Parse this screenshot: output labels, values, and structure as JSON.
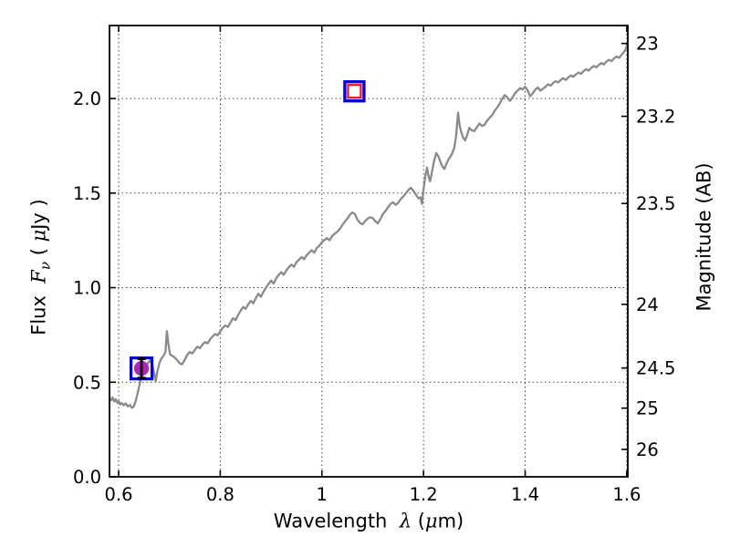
{
  "figure": {
    "background": "#ffffff",
    "title": ""
  },
  "chart_data": {
    "type": "line",
    "title": "",
    "xlabel": "Wavelength  λ (μm)",
    "xlabel_parts": [
      {
        "t": "Wavelength  ",
        "math": false
      },
      {
        "t": "λ",
        "math": true
      },
      {
        "t": " (",
        "math": false
      },
      {
        "t": "μ",
        "math": true
      },
      {
        "t": "m)",
        "math": false
      }
    ],
    "ylabel_left": "Flux Fν ( μJy )",
    "ylabel_left_parts": [
      {
        "t": "Flux  ",
        "math": false
      },
      {
        "t": "F",
        "math": true
      },
      {
        "t": "ν",
        "math": true,
        "sub": true
      },
      {
        "t": " ( ",
        "math": false
      },
      {
        "t": "μ",
        "math": true
      },
      {
        "t": "Jy )",
        "math": false
      }
    ],
    "ylabel_right": "Magnitude (AB)",
    "ylabel_right_parts": [
      {
        "t": "Magnitude (AB)",
        "math": false
      }
    ],
    "xlim": [
      0.582,
      1.602
    ],
    "ylim": [
      0,
      2.386
    ],
    "grid": "dotted",
    "legend": "none",
    "x_ticks": [
      {
        "v": 0.6,
        "label": "0.6"
      },
      {
        "v": 0.8,
        "label": "0.8"
      },
      {
        "v": 1.0,
        "label": "1"
      },
      {
        "v": 1.2,
        "label": "1.2"
      },
      {
        "v": 1.4,
        "label": "1.4"
      },
      {
        "v": 1.6,
        "label": "1.6"
      }
    ],
    "y_ticks_left": [
      {
        "v": 0.0,
        "label": "0.0"
      },
      {
        "v": 0.5,
        "label": "0.5"
      },
      {
        "v": 1.0,
        "label": "1.0"
      },
      {
        "v": 1.5,
        "label": "1.5"
      },
      {
        "v": 2.0,
        "label": "2.0"
      }
    ],
    "y_ticks_right_magnitude": [
      {
        "label": "23",
        "flux": 2.291
      },
      {
        "label": "23.2",
        "flux": 1.906
      },
      {
        "label": "23.5",
        "flux": 1.445
      },
      {
        "label": "24",
        "flux": 0.912
      },
      {
        "label": "24.5",
        "flux": 0.575
      },
      {
        "label": "25",
        "flux": 0.363
      },
      {
        "label": "26",
        "flux": 0.145
      }
    ],
    "colors": {
      "spectrum": "#8a8a8a",
      "blue_square": "#0000ee",
      "red_square": "#ee1111",
      "magenta_circle": "#b224b8",
      "errorbar": "#000000",
      "grid": "#444444",
      "axis": "#000000"
    },
    "photometry_markers": [
      {
        "name": "observed photometry point",
        "x": 0.645,
        "flux": 0.573,
        "flux_err": 0.051,
        "marker": "blue open square + magenta filled circle + black capped error bar"
      },
      {
        "name": "model photometry point",
        "x": 1.064,
        "flux": 2.038,
        "marker": "blue open square + red open square, unfilled"
      }
    ],
    "series": [
      {
        "name": "model spectrum",
        "type": "line",
        "color": "#8a8a8a",
        "points": [
          [
            0.582,
            0.415
          ],
          [
            0.585,
            0.405
          ],
          [
            0.588,
            0.42
          ],
          [
            0.591,
            0.398
          ],
          [
            0.594,
            0.41
          ],
          [
            0.597,
            0.392
          ],
          [
            0.6,
            0.4
          ],
          [
            0.603,
            0.383
          ],
          [
            0.606,
            0.39
          ],
          [
            0.61,
            0.378
          ],
          [
            0.614,
            0.388
          ],
          [
            0.618,
            0.372
          ],
          [
            0.622,
            0.38
          ],
          [
            0.626,
            0.365
          ],
          [
            0.63,
            0.372
          ],
          [
            0.634,
            0.405
          ],
          [
            0.638,
            0.45
          ],
          [
            0.642,
            0.498
          ],
          [
            0.646,
            0.54
          ],
          [
            0.65,
            0.572
          ],
          [
            0.654,
            0.59
          ],
          [
            0.658,
            0.602
          ],
          [
            0.662,
            0.615
          ],
          [
            0.666,
            0.595
          ],
          [
            0.67,
            0.545
          ],
          [
            0.673,
            0.505
          ],
          [
            0.676,
            0.555
          ],
          [
            0.68,
            0.6
          ],
          [
            0.684,
            0.625
          ],
          [
            0.688,
            0.638
          ],
          [
            0.692,
            0.66
          ],
          [
            0.695,
            0.77
          ],
          [
            0.698,
            0.7
          ],
          [
            0.701,
            0.648
          ],
          [
            0.705,
            0.64
          ],
          [
            0.71,
            0.632
          ],
          [
            0.715,
            0.618
          ],
          [
            0.72,
            0.6
          ],
          [
            0.725,
            0.595
          ],
          [
            0.73,
            0.618
          ],
          [
            0.735,
            0.645
          ],
          [
            0.74,
            0.66
          ],
          [
            0.745,
            0.652
          ],
          [
            0.75,
            0.672
          ],
          [
            0.755,
            0.688
          ],
          [
            0.76,
            0.68
          ],
          [
            0.765,
            0.7
          ],
          [
            0.77,
            0.712
          ],
          [
            0.775,
            0.705
          ],
          [
            0.78,
            0.728
          ],
          [
            0.785,
            0.742
          ],
          [
            0.79,
            0.755
          ],
          [
            0.795,
            0.748
          ],
          [
            0.8,
            0.77
          ],
          [
            0.805,
            0.788
          ],
          [
            0.81,
            0.8
          ],
          [
            0.815,
            0.792
          ],
          [
            0.82,
            0.815
          ],
          [
            0.825,
            0.838
          ],
          [
            0.83,
            0.828
          ],
          [
            0.835,
            0.855
          ],
          [
            0.84,
            0.878
          ],
          [
            0.845,
            0.898
          ],
          [
            0.85,
            0.888
          ],
          [
            0.855,
            0.912
          ],
          [
            0.86,
            0.93
          ],
          [
            0.865,
            0.918
          ],
          [
            0.87,
            0.945
          ],
          [
            0.875,
            0.968
          ],
          [
            0.88,
            0.952
          ],
          [
            0.885,
            0.978
          ],
          [
            0.89,
            1.0
          ],
          [
            0.895,
            1.02
          ],
          [
            0.9,
            1.038
          ],
          [
            0.905,
            1.022
          ],
          [
            0.91,
            1.05
          ],
          [
            0.915,
            1.068
          ],
          [
            0.92,
            1.082
          ],
          [
            0.925,
            1.068
          ],
          [
            0.93,
            1.092
          ],
          [
            0.935,
            1.108
          ],
          [
            0.94,
            1.122
          ],
          [
            0.945,
            1.11
          ],
          [
            0.95,
            1.135
          ],
          [
            0.955,
            1.148
          ],
          [
            0.96,
            1.162
          ],
          [
            0.965,
            1.15
          ],
          [
            0.97,
            1.172
          ],
          [
            0.975,
            1.185
          ],
          [
            0.98,
            1.198
          ],
          [
            0.985,
            1.185
          ],
          [
            0.99,
            1.21
          ],
          [
            0.995,
            1.222
          ],
          [
            1.0,
            1.24
          ],
          [
            1.005,
            1.252
          ],
          [
            1.01,
            1.262
          ],
          [
            1.015,
            1.25
          ],
          [
            1.02,
            1.272
          ],
          [
            1.025,
            1.285
          ],
          [
            1.03,
            1.295
          ],
          [
            1.035,
            1.31
          ],
          [
            1.04,
            1.33
          ],
          [
            1.045,
            1.348
          ],
          [
            1.05,
            1.365
          ],
          [
            1.055,
            1.385
          ],
          [
            1.06,
            1.398
          ],
          [
            1.065,
            1.388
          ],
          [
            1.07,
            1.36
          ],
          [
            1.075,
            1.342
          ],
          [
            1.08,
            1.335
          ],
          [
            1.085,
            1.352
          ],
          [
            1.09,
            1.365
          ],
          [
            1.095,
            1.372
          ],
          [
            1.1,
            1.368
          ],
          [
            1.105,
            1.352
          ],
          [
            1.11,
            1.34
          ],
          [
            1.115,
            1.362
          ],
          [
            1.12,
            1.388
          ],
          [
            1.125,
            1.405
          ],
          [
            1.13,
            1.425
          ],
          [
            1.135,
            1.442
          ],
          [
            1.14,
            1.452
          ],
          [
            1.145,
            1.438
          ],
          [
            1.15,
            1.448
          ],
          [
            1.155,
            1.468
          ],
          [
            1.16,
            1.482
          ],
          [
            1.165,
            1.498
          ],
          [
            1.17,
            1.515
          ],
          [
            1.175,
            1.528
          ],
          [
            1.18,
            1.512
          ],
          [
            1.185,
            1.492
          ],
          [
            1.19,
            1.472
          ],
          [
            1.194,
            1.478
          ],
          [
            1.197,
            1.442
          ],
          [
            1.2,
            1.52
          ],
          [
            1.204,
            1.598
          ],
          [
            1.207,
            1.635
          ],
          [
            1.21,
            1.588
          ],
          [
            1.213,
            1.562
          ],
          [
            1.217,
            1.618
          ],
          [
            1.221,
            1.672
          ],
          [
            1.225,
            1.712
          ],
          [
            1.229,
            1.695
          ],
          [
            1.233,
            1.668
          ],
          [
            1.237,
            1.642
          ],
          [
            1.241,
            1.628
          ],
          [
            1.245,
            1.655
          ],
          [
            1.25,
            1.682
          ],
          [
            1.255,
            1.702
          ],
          [
            1.26,
            1.735
          ],
          [
            1.264,
            1.8
          ],
          [
            1.268,
            1.925
          ],
          [
            1.271,
            1.858
          ],
          [
            1.274,
            1.825
          ],
          [
            1.278,
            1.792
          ],
          [
            1.282,
            1.778
          ],
          [
            1.286,
            1.808
          ],
          [
            1.29,
            1.845
          ],
          [
            1.295,
            1.832
          ],
          [
            1.3,
            1.828
          ],
          [
            1.305,
            1.848
          ],
          [
            1.31,
            1.868
          ],
          [
            1.315,
            1.855
          ],
          [
            1.32,
            1.862
          ],
          [
            1.325,
            1.882
          ],
          [
            1.33,
            1.898
          ],
          [
            1.335,
            1.912
          ],
          [
            1.34,
            1.935
          ],
          [
            1.345,
            1.952
          ],
          [
            1.35,
            1.975
          ],
          [
            1.355,
            1.998
          ],
          [
            1.36,
            2.018
          ],
          [
            1.365,
            2.005
          ],
          [
            1.37,
            1.988
          ],
          [
            1.375,
            2.005
          ],
          [
            1.38,
            2.028
          ],
          [
            1.385,
            2.042
          ],
          [
            1.39,
            2.055
          ],
          [
            1.395,
            2.048
          ],
          [
            1.4,
            2.062
          ],
          [
            1.405,
            2.042
          ],
          [
            1.41,
            2.012
          ],
          [
            1.415,
            2.028
          ],
          [
            1.42,
            2.048
          ],
          [
            1.425,
            2.058
          ],
          [
            1.43,
            2.042
          ],
          [
            1.435,
            2.052
          ],
          [
            1.44,
            2.062
          ],
          [
            1.445,
            2.075
          ],
          [
            1.45,
            2.068
          ],
          [
            1.455,
            2.082
          ],
          [
            1.46,
            2.092
          ],
          [
            1.465,
            2.085
          ],
          [
            1.47,
            2.098
          ],
          [
            1.475,
            2.108
          ],
          [
            1.48,
            2.098
          ],
          [
            1.485,
            2.112
          ],
          [
            1.49,
            2.122
          ],
          [
            1.495,
            2.115
          ],
          [
            1.5,
            2.128
          ],
          [
            1.505,
            2.138
          ],
          [
            1.51,
            2.13
          ],
          [
            1.515,
            2.145
          ],
          [
            1.52,
            2.155
          ],
          [
            1.525,
            2.148
          ],
          [
            1.53,
            2.162
          ],
          [
            1.535,
            2.172
          ],
          [
            1.54,
            2.165
          ],
          [
            1.545,
            2.178
          ],
          [
            1.55,
            2.188
          ],
          [
            1.555,
            2.18
          ],
          [
            1.56,
            2.195
          ],
          [
            1.565,
            2.205
          ],
          [
            1.57,
            2.198
          ],
          [
            1.575,
            2.212
          ],
          [
            1.58,
            2.222
          ],
          [
            1.585,
            2.215
          ],
          [
            1.59,
            2.232
          ],
          [
            1.595,
            2.248
          ],
          [
            1.598,
            2.262
          ],
          [
            1.601,
            2.29
          ]
        ]
      }
    ]
  }
}
